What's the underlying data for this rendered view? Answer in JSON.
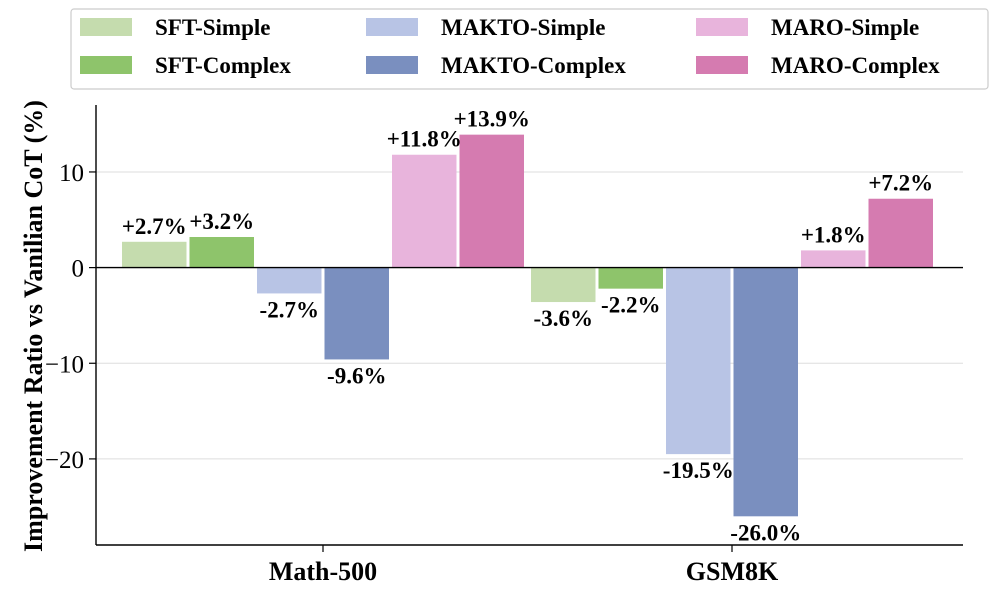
{
  "chart_data": {
    "type": "bar",
    "title": "",
    "xlabel": "",
    "ylabel": "Improvement Ratio vs Vanilian CoT (%)",
    "categories": [
      "Math-500",
      "GSM8K"
    ],
    "ylim": [
      -29,
      17
    ],
    "yticks": [
      10,
      0,
      -10,
      -20
    ],
    "ytick_labels": [
      "10",
      "0",
      "−10",
      "−20"
    ],
    "grid": true,
    "legend_position": "top",
    "series": [
      {
        "name": "SFT-Simple",
        "color": "#c5dcae",
        "values": [
          2.7,
          -3.6
        ],
        "labels": [
          "+2.7%",
          "-3.6%"
        ]
      },
      {
        "name": "SFT-Complex",
        "color": "#8ec46b",
        "values": [
          3.2,
          -2.2
        ],
        "labels": [
          "+3.2%",
          "-2.2%"
        ]
      },
      {
        "name": "MAKTO-Simple",
        "color": "#b8c4e5",
        "values": [
          -2.7,
          -19.5
        ],
        "labels": [
          "-2.7%",
          "-19.5%"
        ]
      },
      {
        "name": "MAKTO-Complex",
        "color": "#7a8fbf",
        "values": [
          -9.6,
          -26.0
        ],
        "labels": [
          "-9.6%",
          "-26.0%"
        ]
      },
      {
        "name": "MARO-Simple",
        "color": "#e8b4dc",
        "values": [
          11.8,
          1.8
        ],
        "labels": [
          "+11.8%",
          "+1.8%"
        ]
      },
      {
        "name": "MARO-Complex",
        "color": "#d57bb0",
        "values": [
          13.9,
          7.2
        ],
        "labels": [
          "+13.9%",
          "+7.2%"
        ]
      }
    ]
  }
}
